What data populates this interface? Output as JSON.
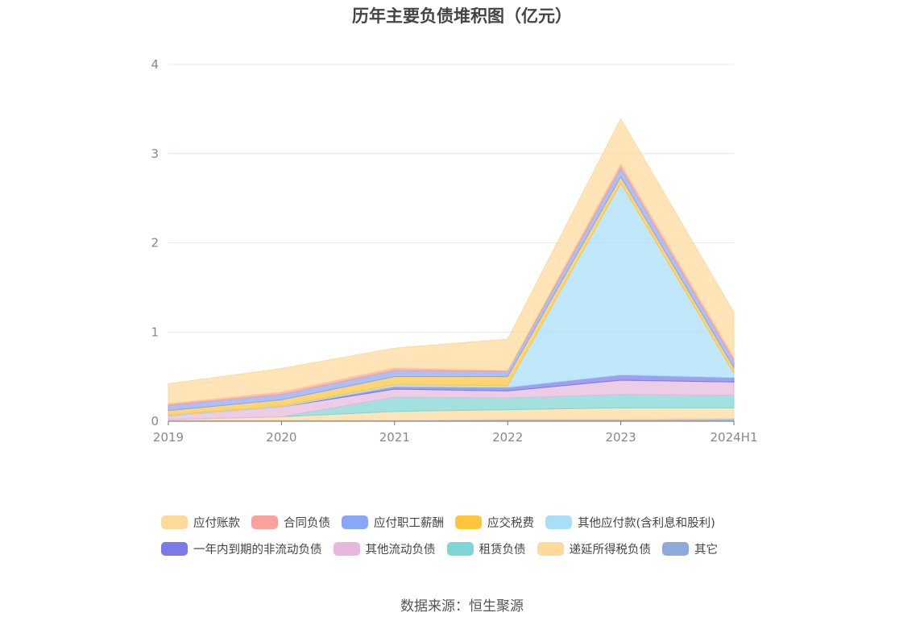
{
  "chart_data": {
    "type": "area",
    "stacked": true,
    "title": "历年主要负债堆积图（亿元）",
    "xlabel": "",
    "ylabel": "",
    "categories": [
      "2019",
      "2020",
      "2021",
      "2022",
      "2023",
      "2024H1"
    ],
    "ylim": [
      0,
      4
    ],
    "yticks": [
      "0",
      "1",
      "2",
      "3",
      "4"
    ],
    "grid": true,
    "legend_position": "bottom",
    "series": [
      {
        "name": "其它",
        "color": "#8fa9d9",
        "values": [
          0.01,
          0.01,
          0.01,
          0.02,
          0.02,
          0.03
        ]
      },
      {
        "name": "递延所得税负债",
        "color": "#fdd99b",
        "values": [
          0.01,
          0.04,
          0.1,
          0.11,
          0.13,
          0.12
        ]
      },
      {
        "name": "租赁负债",
        "color": "#7fd6d6",
        "values": [
          0.0,
          0.0,
          0.16,
          0.13,
          0.15,
          0.14
        ]
      },
      {
        "name": "其他流动负债",
        "color": "#e6b8dc",
        "values": [
          0.04,
          0.11,
          0.09,
          0.08,
          0.16,
          0.15
        ]
      },
      {
        "name": "一年内到期的非流动负债",
        "color": "#7a7ae8",
        "values": [
          0.0,
          0.0,
          0.03,
          0.04,
          0.06,
          0.05
        ]
      },
      {
        "name": "其他应付款(含利息和股利)",
        "color": "#a8dff8",
        "values": [
          0.01,
          0.01,
          0.02,
          0.02,
          2.15,
          0.05
        ]
      },
      {
        "name": "应交税费",
        "color": "#ffc53d",
        "values": [
          0.05,
          0.07,
          0.09,
          0.1,
          0.07,
          0.06
        ]
      },
      {
        "name": "应付职工薪酬",
        "color": "#8aa6f7",
        "values": [
          0.06,
          0.06,
          0.07,
          0.06,
          0.1,
          0.08
        ]
      },
      {
        "name": "合同负债",
        "color": "#f7a29a",
        "values": [
          0.02,
          0.03,
          0.03,
          0.01,
          0.05,
          0.04
        ]
      },
      {
        "name": "应付账款",
        "color": "#fdd99b",
        "values": [
          0.22,
          0.26,
          0.22,
          0.35,
          0.5,
          0.5
        ]
      }
    ]
  },
  "legend": {
    "row1": [
      {
        "label": "应付账款",
        "color": "#fdd99b"
      },
      {
        "label": "合同负债",
        "color": "#f7a29a"
      },
      {
        "label": "应付职工薪酬",
        "color": "#8aa6f7"
      },
      {
        "label": "应交税费",
        "color": "#ffc53d"
      },
      {
        "label": "其他应付款(含利息和股利)",
        "color": "#a8dff8"
      }
    ],
    "row2": [
      {
        "label": "一年内到期的非流动负债",
        "color": "#7a7ae8"
      },
      {
        "label": "其他流动负债",
        "color": "#e6b8dc"
      },
      {
        "label": "租赁负债",
        "color": "#7fd6d6"
      },
      {
        "label": "递延所得税负债",
        "color": "#fdd99b"
      },
      {
        "label": "其它",
        "color": "#8fa9d9"
      }
    ]
  },
  "source": "数据来源：恒生聚源"
}
